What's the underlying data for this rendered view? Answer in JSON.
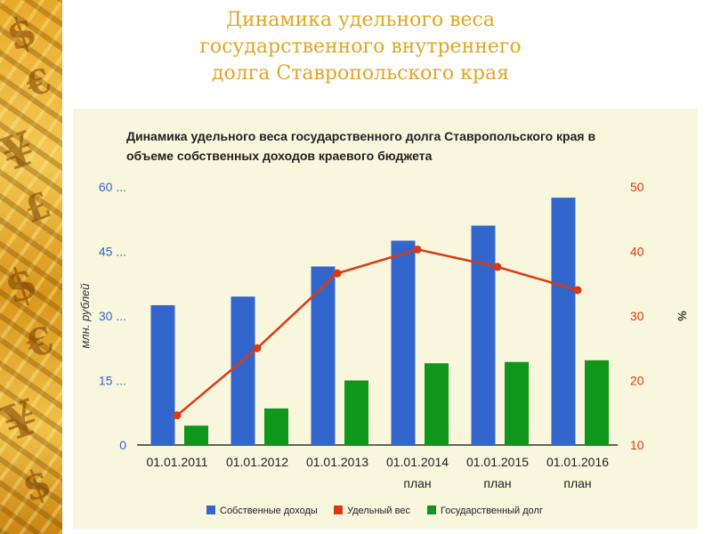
{
  "slide": {
    "title_lines": [
      "Динамика удельного веса",
      "государственного внутреннего",
      "долга Ставропольского края"
    ]
  },
  "sidebar": {
    "glyphs": [
      "$",
      "€",
      "¥",
      "£",
      "$",
      "€",
      "¥",
      "$"
    ]
  },
  "colors": {
    "title": "#e0a623",
    "income": "#3366cc",
    "share": "#dc3912",
    "debt": "#109618",
    "panel": "#f8f6dc",
    "left_axis": "#3366cc",
    "right_axis": "#dc3912"
  },
  "chart_data": {
    "type": "bar",
    "title_lines": [
      "Динамика удельного веса государственного долга Ставропольского края в",
      "объеме собственных доходов краевого бюджета"
    ],
    "categories": [
      [
        "01.01.2011"
      ],
      [
        "01.01.2012"
      ],
      [
        "01.01.2013"
      ],
      [
        "01.01.2014",
        "план"
      ],
      [
        "01.01.2015",
        "план"
      ],
      [
        "01.01.2016",
        "план"
      ]
    ],
    "series": [
      {
        "name": "Собственные доходы",
        "type": "bar",
        "axis": "left",
        "values": [
          32.5,
          34.5,
          41.5,
          47.5,
          51,
          57.5
        ]
      },
      {
        "name": "Государственный долг",
        "type": "bar",
        "axis": "left",
        "values": [
          4.5,
          8.5,
          15,
          19,
          19.3,
          19.7
        ]
      },
      {
        "name": "Удельный вес",
        "type": "line",
        "axis": "right",
        "values": [
          14.6,
          25,
          36.6,
          40.3,
          37.6,
          34
        ]
      }
    ],
    "legend_order": [
      "Собственные доходы",
      "Удельный вес",
      "Государственный долг"
    ],
    "y_left": {
      "label": "млн. рублей",
      "ylim": [
        0,
        60
      ],
      "ticks": [
        "0",
        "15 ...",
        "30 ...",
        "45 ...",
        "60 ..."
      ],
      "tick_values": [
        0,
        15,
        30,
        45,
        60
      ]
    },
    "y_right": {
      "label": "%",
      "ylim": [
        10,
        50
      ],
      "ticks": [
        "10",
        "20",
        "30",
        "40",
        "50"
      ],
      "tick_values": [
        10,
        20,
        30,
        40,
        50
      ]
    },
    "legend_position": "bottom",
    "grid": false
  }
}
